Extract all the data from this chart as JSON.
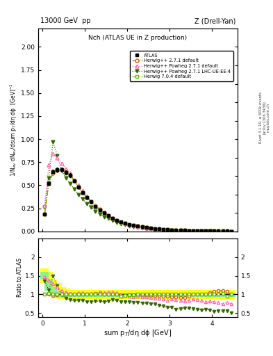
{
  "title_top": "13000 GeV  pp",
  "title_right": "Z (Drell-Yan)",
  "plot_title": "Nch (ATLAS UE in Z production)",
  "ylabel_main": "1/N$_{ev}$ dN$_{ev}$/dsum p$_{T}$/dη dϕ  [GeV]$^{-1}$",
  "ylabel_ratio": "Ratio to ATLAS",
  "xlabel": "sum p$_{T}$/dη dϕ [GeV]",
  "rivet_label": "Rivet 3.1.10, ≥ 600k events",
  "arxiv_label": "[arXiv:1306.3436]",
  "mcplots_label": "mcplots.cern.ch",
  "ylim_main": [
    0,
    2.2
  ],
  "ylim_ratio": [
    0.4,
    2.4
  ],
  "atlas_x": [
    0.05,
    0.15,
    0.25,
    0.35,
    0.45,
    0.55,
    0.65,
    0.75,
    0.85,
    0.95,
    1.05,
    1.15,
    1.25,
    1.35,
    1.45,
    1.55,
    1.65,
    1.75,
    1.85,
    1.95,
    2.05,
    2.15,
    2.25,
    2.35,
    2.45,
    2.55,
    2.65,
    2.75,
    2.85,
    2.95,
    3.05,
    3.15,
    3.25,
    3.35,
    3.45,
    3.55,
    3.65,
    3.75,
    3.85,
    3.95,
    4.05,
    4.15,
    4.25,
    4.35,
    4.45
  ],
  "atlas_y": [
    0.19,
    0.52,
    0.65,
    0.67,
    0.67,
    0.64,
    0.61,
    0.55,
    0.48,
    0.42,
    0.37,
    0.32,
    0.27,
    0.23,
    0.2,
    0.17,
    0.14,
    0.12,
    0.105,
    0.09,
    0.077,
    0.067,
    0.057,
    0.049,
    0.042,
    0.036,
    0.031,
    0.027,
    0.023,
    0.02,
    0.017,
    0.015,
    0.013,
    0.011,
    0.0095,
    0.008,
    0.007,
    0.006,
    0.005,
    0.0043,
    0.0037,
    0.0032,
    0.0027,
    0.0023,
    0.002
  ],
  "atlas_yerr": [
    0.01,
    0.02,
    0.02,
    0.02,
    0.02,
    0.02,
    0.02,
    0.015,
    0.015,
    0.015,
    0.01,
    0.01,
    0.01,
    0.01,
    0.008,
    0.007,
    0.006,
    0.005,
    0.005,
    0.004,
    0.003,
    0.003,
    0.003,
    0.002,
    0.002,
    0.002,
    0.002,
    0.001,
    0.001,
    0.001,
    0.001,
    0.001,
    0.001,
    0.001,
    0.0005,
    0.0005,
    0.0005,
    0.0005,
    0.0004,
    0.0004,
    0.0003,
    0.0003,
    0.0003,
    0.0002,
    0.0002
  ],
  "hw271_y": [
    0.19,
    0.52,
    0.63,
    0.66,
    0.67,
    0.64,
    0.61,
    0.55,
    0.48,
    0.42,
    0.37,
    0.32,
    0.28,
    0.24,
    0.2,
    0.17,
    0.14,
    0.12,
    0.1,
    0.088,
    0.075,
    0.065,
    0.056,
    0.048,
    0.041,
    0.035,
    0.03,
    0.026,
    0.022,
    0.019,
    0.016,
    0.014,
    0.012,
    0.01,
    0.009,
    0.008,
    0.007,
    0.006,
    0.005,
    0.0045,
    0.004,
    0.0035,
    0.003,
    0.0025,
    0.002
  ],
  "hw271_color": "#cc6600",
  "hw271pow_y": [
    0.28,
    0.72,
    0.84,
    0.8,
    0.74,
    0.68,
    0.63,
    0.56,
    0.5,
    0.44,
    0.38,
    0.33,
    0.28,
    0.24,
    0.21,
    0.18,
    0.15,
    0.125,
    0.105,
    0.088,
    0.074,
    0.063,
    0.054,
    0.046,
    0.039,
    0.033,
    0.028,
    0.024,
    0.02,
    0.017,
    0.015,
    0.013,
    0.011,
    0.009,
    0.008,
    0.007,
    0.006,
    0.005,
    0.004,
    0.0035,
    0.003,
    0.0025,
    0.002,
    0.0018,
    0.0015
  ],
  "hw271pow_color": "#ff69b4",
  "hw271powlhc_y": [
    0.26,
    0.58,
    0.97,
    0.82,
    0.66,
    0.58,
    0.52,
    0.46,
    0.4,
    0.35,
    0.3,
    0.26,
    0.22,
    0.19,
    0.16,
    0.14,
    0.12,
    0.1,
    0.085,
    0.072,
    0.062,
    0.053,
    0.045,
    0.038,
    0.032,
    0.027,
    0.023,
    0.019,
    0.016,
    0.013,
    0.011,
    0.009,
    0.008,
    0.007,
    0.006,
    0.005,
    0.0042,
    0.0035,
    0.003,
    0.0025,
    0.002,
    0.0018,
    0.0015,
    0.0013,
    0.001
  ],
  "hw271powlhc_color": "#336600",
  "hw704_y": [
    0.19,
    0.53,
    0.65,
    0.67,
    0.67,
    0.64,
    0.61,
    0.55,
    0.48,
    0.42,
    0.37,
    0.32,
    0.27,
    0.23,
    0.2,
    0.17,
    0.14,
    0.12,
    0.1,
    0.088,
    0.076,
    0.066,
    0.057,
    0.049,
    0.042,
    0.036,
    0.031,
    0.027,
    0.023,
    0.02,
    0.017,
    0.015,
    0.013,
    0.011,
    0.0095,
    0.008,
    0.007,
    0.006,
    0.005,
    0.0043,
    0.0037,
    0.0032,
    0.0028,
    0.0022,
    0.002
  ],
  "hw704_color": "#66bb00",
  "atlas_ratio_yellow_lo": [
    1.3,
    1.2,
    1.0,
    0.9,
    0.88,
    0.87,
    0.87,
    0.88,
    0.88,
    0.88,
    0.88,
    0.88,
    0.88,
    0.88,
    0.88,
    0.88,
    0.88,
    0.88,
    0.88,
    0.88,
    0.88,
    0.88,
    0.88,
    0.88,
    0.88,
    0.88,
    0.88,
    0.88,
    0.88,
    0.88,
    0.88,
    0.88,
    0.88,
    0.88,
    0.88,
    0.88,
    0.88,
    0.88,
    0.88,
    0.88,
    0.88,
    0.88,
    0.88,
    0.88,
    0.88
  ],
  "atlas_ratio_yellow_hi": [
    1.7,
    1.6,
    1.4,
    1.3,
    1.2,
    1.15,
    1.13,
    1.12,
    1.12,
    1.12,
    1.12,
    1.12,
    1.12,
    1.12,
    1.12,
    1.12,
    1.12,
    1.12,
    1.12,
    1.12,
    1.12,
    1.12,
    1.12,
    1.12,
    1.12,
    1.12,
    1.12,
    1.12,
    1.12,
    1.12,
    1.12,
    1.12,
    1.12,
    1.12,
    1.12,
    1.12,
    1.12,
    1.12,
    1.12,
    1.12,
    1.12,
    1.12,
    1.12,
    1.12,
    1.12
  ],
  "atlas_ratio_green_lo": [
    1.4,
    1.1,
    0.95,
    0.92,
    0.92,
    0.93,
    0.93,
    0.93,
    0.93,
    0.93,
    0.93,
    0.93,
    0.93,
    0.93,
    0.93,
    0.93,
    0.93,
    0.93,
    0.93,
    0.93,
    0.93,
    0.93,
    0.93,
    0.93,
    0.93,
    0.93,
    0.93,
    0.93,
    0.93,
    0.93,
    0.93,
    0.93,
    0.93,
    0.93,
    0.93,
    0.93,
    0.93,
    0.93,
    0.93,
    0.93,
    0.93,
    0.93,
    0.93,
    0.93,
    0.93
  ],
  "atlas_ratio_green_hi": [
    1.6,
    1.4,
    1.2,
    1.1,
    1.05,
    1.05,
    1.05,
    1.05,
    1.05,
    1.05,
    1.05,
    1.05,
    1.05,
    1.05,
    1.05,
    1.05,
    1.05,
    1.05,
    1.05,
    1.05,
    1.05,
    1.05,
    1.05,
    1.05,
    1.05,
    1.05,
    1.05,
    1.05,
    1.05,
    1.05,
    1.05,
    1.05,
    1.05,
    1.05,
    1.05,
    1.05,
    1.05,
    1.05,
    1.05,
    1.05,
    1.05,
    1.05,
    1.05,
    1.05,
    1.05
  ]
}
